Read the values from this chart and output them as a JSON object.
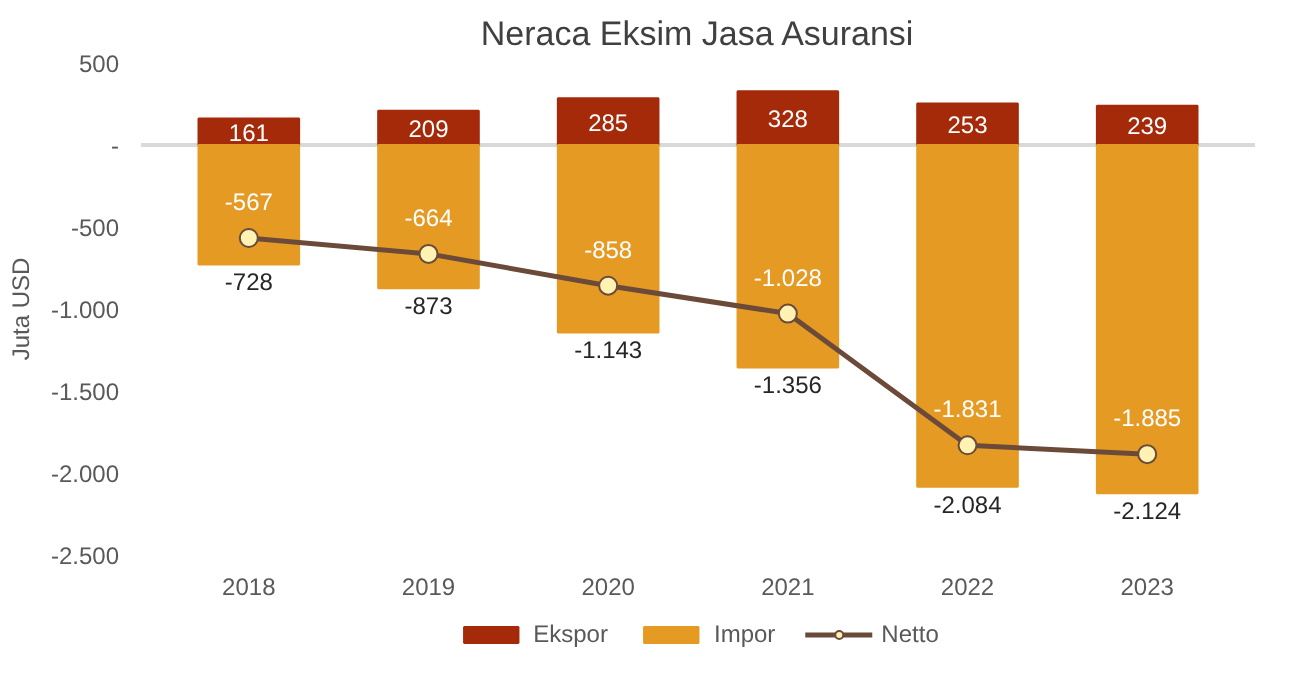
{
  "chart_data": {
    "type": "bar",
    "title": "Neraca Eksim Jasa Asuransi",
    "ylabel": "Juta USD",
    "categories": [
      "2018",
      "2019",
      "2020",
      "2021",
      "2022",
      "2023"
    ],
    "stacked": true,
    "series": [
      {
        "name": "Ekspor",
        "color": "#a52a0a",
        "values": [
          161,
          209,
          285,
          328,
          253,
          239
        ],
        "value_labels": [
          "161",
          "209",
          "285",
          "328",
          "253",
          "239"
        ]
      },
      {
        "name": "Impor",
        "color": "#e59a23",
        "values": [
          -728,
          -873,
          -1143,
          -1356,
          -2084,
          -2124
        ],
        "value_labels": [
          "-728",
          "-873",
          "-1.143",
          "-1.356",
          "-2.084",
          "-2.124"
        ]
      },
      {
        "name": "Netto",
        "type": "line",
        "color": "#6b4a3a",
        "marker": "circle",
        "values": [
          -567,
          -664,
          -858,
          -1028,
          -1831,
          -1885
        ],
        "value_labels": [
          "-567",
          "-664",
          "-858",
          "-1.028",
          "-1.831",
          "-1.885"
        ]
      }
    ],
    "ylim": [
      -2500,
      500
    ],
    "yticks": [
      500,
      {
        "value": 0,
        "label": "-"
      },
      -500,
      {
        "value": -1000,
        "label": "-1.000"
      },
      {
        "value": -1500,
        "label": "-1.500"
      },
      {
        "value": -2000,
        "label": "-2.000"
      },
      {
        "value": -2500,
        "label": "-2.500"
      }
    ],
    "ref_lines": [
      {
        "axis": "y",
        "value": 0,
        "color": "#d9d9d9"
      }
    ],
    "grid": false,
    "legend": "bottom"
  }
}
